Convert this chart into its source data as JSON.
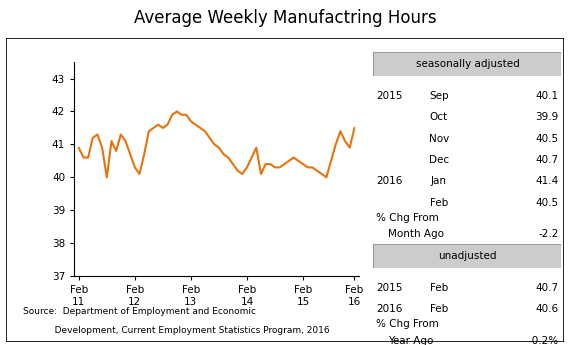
{
  "title": "Average Weekly Manufactring Hours",
  "line_color": "#E8720C",
  "line_width": 1.5,
  "background_color": "#ffffff",
  "ylim": [
    37,
    43.5
  ],
  "yticks": [
    37,
    38,
    39,
    40,
    41,
    42,
    43
  ],
  "xtick_labels": [
    "Feb\n11",
    "Feb\n12",
    "Feb\n13",
    "Feb\n14",
    "Feb\n15",
    "Feb\n16"
  ],
  "x_tick_positions": [
    0,
    12,
    24,
    36,
    48,
    59
  ],
  "source_line1": "Source:  Department of Employment and Economic",
  "source_line2": "           Development, Current Employment Statistics Program, 2016",
  "seasonally_adjusted_label": "seasonally adjusted",
  "unadjusted_label": "unadjusted",
  "sa_data": [
    [
      "2015",
      "Sep",
      "40.1"
    ],
    [
      "",
      "Oct",
      "39.9"
    ],
    [
      "",
      "Nov",
      "40.5"
    ],
    [
      "",
      "Dec",
      "40.7"
    ],
    [
      "2016",
      "Jan",
      "41.4"
    ],
    [
      "",
      "Feb",
      "40.5"
    ]
  ],
  "sa_pct_label1": "% Chg From",
  "sa_pct_label2": "Month Ago",
  "sa_pct_value": "-2.2",
  "ua_data": [
    [
      "2015",
      "Feb",
      "40.7"
    ],
    [
      "2016",
      "Feb",
      "40.6"
    ]
  ],
  "ua_pct_label1": "% Chg From",
  "ua_pct_label2": "Year Ago",
  "ua_pct_value": "-0.2%",
  "y_values": [
    40.9,
    40.6,
    40.6,
    41.2,
    41.3,
    40.9,
    40.0,
    41.1,
    40.8,
    41.3,
    41.1,
    40.7,
    40.3,
    40.1,
    40.7,
    41.4,
    41.5,
    41.6,
    41.5,
    41.6,
    41.9,
    42.0,
    41.9,
    41.9,
    41.7,
    41.6,
    41.5,
    41.4,
    41.2,
    41.0,
    40.9,
    40.7,
    40.6,
    40.4,
    40.2,
    40.1,
    40.3,
    40.6,
    40.9,
    40.1,
    40.4,
    40.4,
    40.3,
    40.3,
    40.4,
    40.5,
    40.6,
    40.5,
    40.4,
    40.3,
    40.3,
    40.2,
    40.1,
    40.0,
    40.5,
    41.0,
    41.4,
    41.1,
    40.9,
    41.5
  ]
}
